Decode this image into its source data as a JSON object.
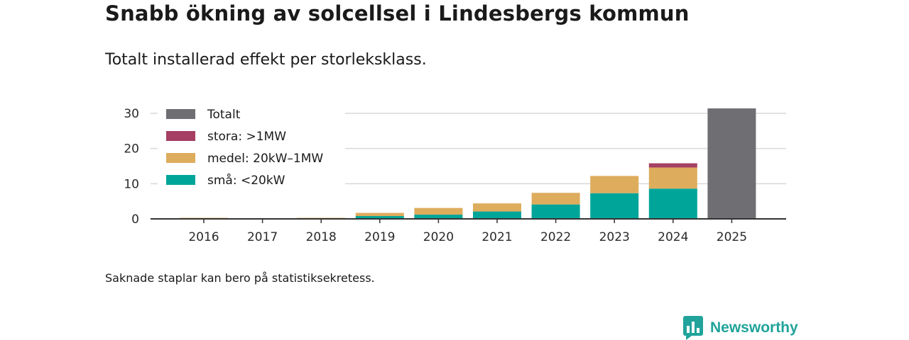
{
  "title": "Snabb ökning av solcellsel i Lindesbergs kommun",
  "subtitle": "Totalt installerad effekt per storleksklass.",
  "footnote": "Saknade staplar kan bero på statistiksekretess.",
  "brand": {
    "name": "Newsworthy",
    "icon": "newsworthy-logo-icon",
    "color": "#20a39a"
  },
  "chart_data": {
    "type": "bar",
    "stacked": true,
    "categories": [
      "2016",
      "2017",
      "2018",
      "2019",
      "2020",
      "2021",
      "2022",
      "2023",
      "2024",
      "2025"
    ],
    "series": [
      {
        "name": "små: <20kW",
        "key": "sma",
        "color": "#00a59a",
        "values": [
          0.1,
          0.1,
          0.2,
          0.8,
          1.2,
          2.1,
          4.1,
          7.3,
          8.6,
          null
        ]
      },
      {
        "name": "medel: 20kW–1MW",
        "key": "medel",
        "color": "#ddac5c",
        "values": [
          0.2,
          0.0,
          0.1,
          0.9,
          1.9,
          2.3,
          3.3,
          4.9,
          6.0,
          null
        ]
      },
      {
        "name": "stora: >1MW",
        "key": "stora",
        "color": "#a53f64",
        "values": [
          0,
          0,
          0,
          0,
          0,
          0,
          0,
          0,
          1.2,
          null
        ]
      },
      {
        "name": "Totalt",
        "key": "totalt",
        "color": "#6e6e73",
        "values": [
          null,
          null,
          null,
          null,
          null,
          null,
          null,
          null,
          null,
          31.4
        ]
      }
    ],
    "legend_order": [
      "Totalt",
      "stora: >1MW",
      "medel: 20kW–1MW",
      "små: <20kW"
    ],
    "legend_position": "top-left",
    "ylim": [
      0,
      32
    ],
    "yticks": [
      0,
      10,
      20,
      30
    ],
    "grid": true,
    "xlabel": "",
    "ylabel": ""
  }
}
